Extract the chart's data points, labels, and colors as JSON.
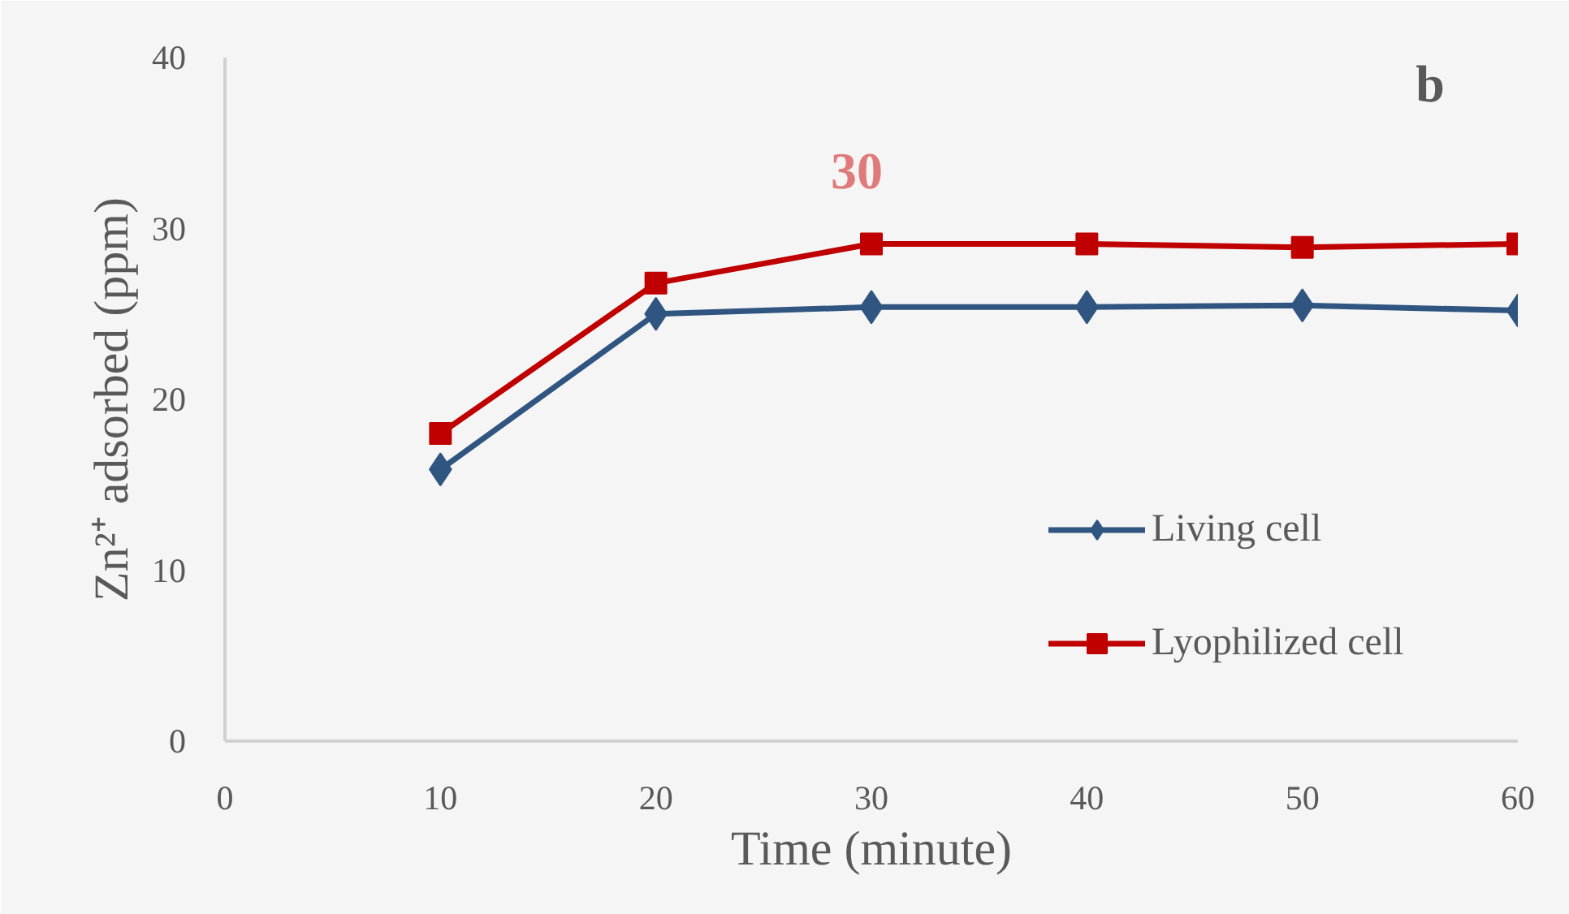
{
  "chart_data": {
    "type": "line",
    "xlabel": "Time (minute)",
    "ylabel": "Zn²⁺ adsorbed (ppm)",
    "x": [
      10,
      20,
      30,
      40,
      50,
      60
    ],
    "series": [
      {
        "name": "Living cell",
        "color": "#2f5580",
        "marker": "diamond",
        "values": [
          15.9,
          25.0,
          25.4,
          25.4,
          25.5,
          25.2
        ]
      },
      {
        "name": "Lyophilized cell",
        "color": "#c00000",
        "marker": "square",
        "values": [
          18.0,
          26.8,
          29.1,
          29.1,
          28.9,
          29.1
        ]
      }
    ],
    "xlim": [
      0,
      60
    ],
    "xticks": [
      0,
      10,
      20,
      30,
      40,
      50,
      60
    ],
    "ylim": [
      0,
      40
    ],
    "yticks": [
      0,
      10,
      20,
      30,
      40
    ],
    "grid": false,
    "legend": "right",
    "line_style": "solid",
    "annotations": [
      "30",
      "b"
    ]
  }
}
